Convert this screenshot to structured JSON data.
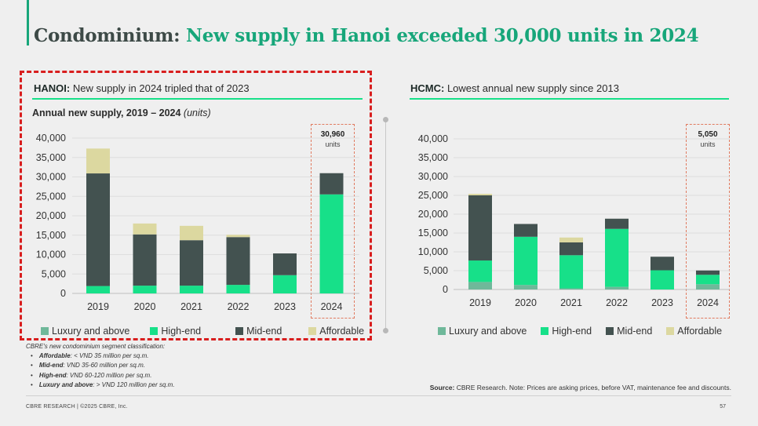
{
  "header": {
    "title_part1": "Condominium:",
    "title_part2": "New supply in Hanoi exceeded 30,000 units in 2024"
  },
  "hanoi": {
    "head_bold": "HANOI:",
    "head_text": "New supply in 2024 tripled that of 2023",
    "subtitle_bold": "Annual new supply, 2019 – 2024",
    "subtitle_unit": "(units)",
    "callout_value": "30,960",
    "callout_unit": "units"
  },
  "hcmc": {
    "head_bold": "HCMC:",
    "head_text": "Lowest annual new supply since 2013",
    "callout_value": "5,050",
    "callout_unit": "units"
  },
  "legend": [
    "Luxury and above",
    "High-end",
    "Mid-end",
    "Affordable"
  ],
  "colors": {
    "accent": "#17a67a",
    "luxury": "#6fb89a",
    "high_end": "#17e089",
    "mid_end": "#435250",
    "affordable": "#dcd8a0",
    "highlight_red": "#d81e1e",
    "callout_orange": "#e07a5f"
  },
  "chart_data": [
    {
      "type": "bar",
      "stacked": true,
      "title": "Annual new supply, 2019 – 2024 (units)",
      "categories": [
        "2019",
        "2020",
        "2021",
        "2022",
        "2023",
        "2024"
      ],
      "ylim": [
        0,
        40000
      ],
      "yticks": [
        "0",
        "5,000",
        "10,000",
        "15,000",
        "20,000",
        "25,000",
        "30,000",
        "35,000",
        "40,000"
      ],
      "grid": true,
      "legend_position": "bottom",
      "series": [
        {
          "name": "Luxury and above",
          "values": [
            0,
            0,
            0,
            0,
            0,
            0
          ]
        },
        {
          "name": "High-end",
          "values": [
            1900,
            2000,
            2000,
            2200,
            4700,
            25500
          ]
        },
        {
          "name": "Mid-end",
          "values": [
            29000,
            13200,
            11700,
            12300,
            5600,
            5460
          ]
        },
        {
          "name": "Affordable",
          "values": [
            6400,
            2800,
            3700,
            600,
            0,
            0
          ]
        }
      ]
    },
    {
      "type": "bar",
      "stacked": true,
      "categories": [
        "2019",
        "2020",
        "2021",
        "2022",
        "2023",
        "2024"
      ],
      "ylim": [
        0,
        40000
      ],
      "yticks": [
        "0",
        "5,000",
        "10,000",
        "15,000",
        "20,000",
        "25,000",
        "30,000",
        "35,000",
        "40,000"
      ],
      "grid": true,
      "legend_position": "bottom",
      "series": [
        {
          "name": "Luxury and above",
          "values": [
            2000,
            1200,
            300,
            700,
            0,
            1400
          ]
        },
        {
          "name": "High-end",
          "values": [
            5700,
            12800,
            8800,
            15400,
            5100,
            2500
          ]
        },
        {
          "name": "Mid-end",
          "values": [
            17300,
            3400,
            3400,
            2700,
            3600,
            1150
          ]
        },
        {
          "name": "Affordable",
          "values": [
            400,
            0,
            1300,
            0,
            0,
            0
          ]
        }
      ]
    }
  ],
  "notes": {
    "heading": "CBRE's new condominium segment classification:",
    "items": [
      {
        "label": "Affordable",
        "text": ": < VND 35 million per sq.m."
      },
      {
        "label": "Mid-end",
        "text": ": VND 35-60 million per sq.m."
      },
      {
        "label": "High-end",
        "text": ": VND 60-120 million per sq.m."
      },
      {
        "label": "Luxury and above",
        "text": ": > VND 120 million per sq.m."
      }
    ]
  },
  "source": {
    "label": "Source:",
    "text": "CBRE Research. Note: Prices are asking prices, before VAT, maintenance fee and discounts."
  },
  "footer": {
    "left": "CBRE RESEARCH | ©2025 CBRE, Inc.",
    "page": "57"
  }
}
